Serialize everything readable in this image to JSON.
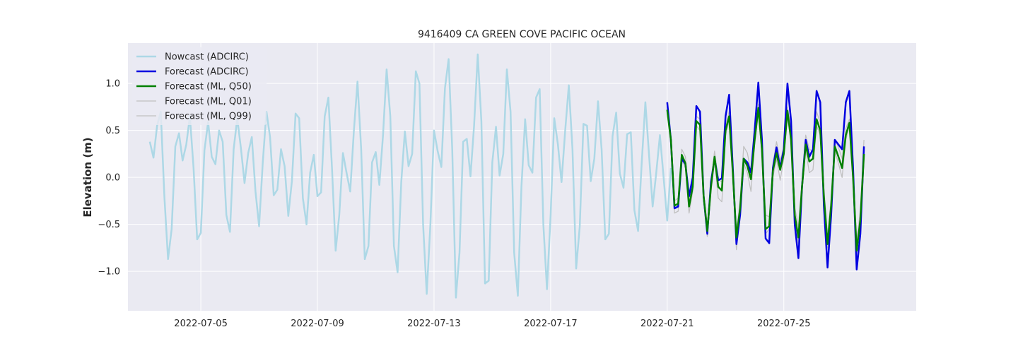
{
  "chart_data": {
    "type": "line",
    "title": "9416409 CA GREEN COVE PACIFIC OCEAN",
    "xlabel": "",
    "ylabel": "Elevation (m)",
    "xlim": [
      "2022-07-02T12:00",
      "2022-07-29T13:00"
    ],
    "ylim": [
      -1.42,
      1.43
    ],
    "x_ticks": [
      "2022-07-05",
      "2022-07-09",
      "2022-07-13",
      "2022-07-17",
      "2022-07-21",
      "2022-07-25"
    ],
    "y_ticks": [
      -1.0,
      -0.5,
      0.0,
      0.5,
      1.0
    ],
    "y_tick_labels": [
      "−1.0",
      "−0.5",
      "0.0",
      "0.5",
      "1.0"
    ],
    "grid": true,
    "legend_position": "top-left",
    "series": [
      {
        "name": "Nowcast (ADCIRC)",
        "color": "#add8e6",
        "x_start": "2022-07-03T06:00",
        "step_hours": 3,
        "values": [
          0.38,
          0.21,
          0.55,
          0.7,
          -0.2,
          -0.87,
          -0.55,
          0.33,
          0.47,
          0.18,
          0.35,
          0.65,
          0.1,
          -0.66,
          -0.59,
          0.29,
          0.59,
          0.22,
          0.14,
          0.5,
          0.38,
          -0.4,
          -0.58,
          0.3,
          0.63,
          0.31,
          -0.06,
          0.26,
          0.43,
          -0.15,
          -0.52,
          0.16,
          0.7,
          0.43,
          -0.19,
          -0.13,
          0.3,
          0.12,
          -0.41,
          -0.04,
          0.68,
          0.63,
          -0.22,
          -0.5,
          0.05,
          0.24,
          -0.2,
          -0.16,
          0.65,
          0.85,
          0.1,
          -0.78,
          -0.4,
          0.26,
          0.05,
          -0.15,
          0.5,
          1.02,
          0.3,
          -0.87,
          -0.73,
          0.16,
          0.27,
          -0.08,
          0.45,
          1.15,
          0.65,
          -0.73,
          -1.01,
          -0.05,
          0.49,
          0.12,
          0.25,
          1.13,
          1.0,
          -0.5,
          -1.24,
          -0.5,
          0.5,
          0.28,
          0.11,
          0.95,
          1.26,
          0.3,
          -1.28,
          -0.8,
          0.38,
          0.41,
          0.01,
          0.55,
          1.31,
          0.6,
          -1.13,
          -1.1,
          0.16,
          0.54,
          0.02,
          0.25,
          1.15,
          0.7,
          -0.8,
          -1.26,
          -0.1,
          0.62,
          0.13,
          0.05,
          0.85,
          0.94,
          -0.5,
          -1.19,
          -0.4,
          0.63,
          0.35,
          -0.05,
          0.5,
          0.98,
          0.3,
          -0.97,
          -0.52,
          0.57,
          0.55,
          -0.04,
          0.2,
          0.81,
          0.3,
          -0.66,
          -0.6,
          0.44,
          0.69,
          0.04,
          -0.11,
          0.46,
          0.48,
          -0.35,
          -0.57,
          0.15,
          0.8,
          0.25,
          -0.31,
          0.05,
          0.45,
          0.0,
          -0.46,
          0.1
        ]
      },
      {
        "name": "Forecast (ADCIRC)",
        "color": "#0000e0",
        "x_start": "2022-07-21T00:00",
        "step_hours": 3,
        "values": [
          0.8,
          0.4,
          -0.33,
          -0.31,
          0.2,
          0.14,
          -0.2,
          0.0,
          0.76,
          0.7,
          -0.2,
          -0.6,
          -0.05,
          0.2,
          -0.03,
          -0.01,
          0.65,
          0.88,
          0.1,
          -0.71,
          -0.4,
          0.2,
          0.16,
          0.05,
          0.5,
          1.01,
          0.4,
          -0.65,
          -0.7,
          0.1,
          0.32,
          0.1,
          0.3,
          1.0,
          0.6,
          -0.5,
          -0.86,
          -0.1,
          0.4,
          0.22,
          0.3,
          0.92,
          0.8,
          -0.3,
          -0.96,
          -0.4,
          0.4,
          0.35,
          0.3,
          0.8,
          0.92,
          0.1,
          -0.98,
          -0.6,
          0.33
        ]
      },
      {
        "name": "Forecast (ML, Q50)",
        "color": "#008000",
        "x_start": "2022-07-21T00:00",
        "step_hours": 3,
        "values": [
          0.72,
          0.4,
          -0.3,
          -0.28,
          0.24,
          0.15,
          -0.31,
          -0.1,
          0.6,
          0.56,
          -0.2,
          -0.57,
          -0.1,
          0.22,
          -0.1,
          -0.14,
          0.5,
          0.65,
          0.05,
          -0.64,
          -0.33,
          0.2,
          0.12,
          -0.02,
          0.4,
          0.74,
          0.3,
          -0.55,
          -0.52,
          0.07,
          0.26,
          0.08,
          0.25,
          0.71,
          0.4,
          -0.4,
          -0.64,
          -0.1,
          0.35,
          0.17,
          0.2,
          0.62,
          0.5,
          -0.2,
          -0.71,
          -0.3,
          0.33,
          0.22,
          0.1,
          0.45,
          0.58,
          0.0,
          -0.78,
          -0.45,
          0.25
        ]
      },
      {
        "name": "Forecast (ML, Q01)",
        "color": "#c0c0c0",
        "x_start": "2022-07-21T00:00",
        "step_hours": 3,
        "values": [
          0.68,
          0.35,
          -0.38,
          -0.36,
          0.2,
          0.1,
          -0.38,
          -0.15,
          0.55,
          0.5,
          -0.25,
          -0.63,
          -0.15,
          0.18,
          -0.22,
          -0.26,
          0.45,
          0.6,
          0.0,
          -0.77,
          -0.4,
          0.15,
          0.05,
          -0.15,
          0.35,
          0.7,
          0.25,
          -0.6,
          -0.55,
          0.0,
          0.2,
          -0.03,
          0.2,
          0.68,
          0.35,
          -0.45,
          -0.7,
          -0.15,
          0.3,
          0.05,
          0.08,
          0.55,
          0.45,
          -0.25,
          -0.75,
          -0.35,
          0.28,
          0.15,
          0.0,
          0.4,
          0.55,
          -0.05,
          -0.8,
          -0.5,
          0.2
        ]
      },
      {
        "name": "Forecast (ML, Q99)",
        "color": "#c0c0c0",
        "x_start": "2022-07-21T00:00",
        "step_hours": 3,
        "values": [
          0.75,
          0.45,
          -0.25,
          -0.22,
          0.3,
          0.22,
          -0.25,
          -0.02,
          0.65,
          0.62,
          -0.15,
          -0.52,
          -0.04,
          0.28,
          -0.02,
          -0.05,
          0.55,
          0.7,
          0.12,
          -0.58,
          -0.25,
          0.33,
          0.26,
          0.05,
          0.45,
          0.78,
          0.38,
          -0.4,
          -0.42,
          0.14,
          0.38,
          0.18,
          0.32,
          0.75,
          0.48,
          -0.32,
          -0.52,
          -0.03,
          0.45,
          0.3,
          0.28,
          0.7,
          0.58,
          -0.12,
          -0.62,
          -0.22,
          0.4,
          0.32,
          0.2,
          0.52,
          0.62,
          0.08,
          -0.68,
          -0.35,
          0.4
        ]
      }
    ]
  }
}
